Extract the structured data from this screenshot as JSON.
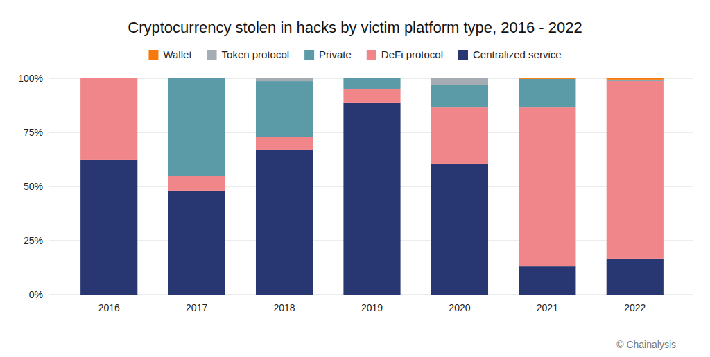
{
  "chart_data": {
    "type": "bar",
    "title": "Cryptocurrency stolen in hacks by victim platform type, 2016 - 2022",
    "source": "© Chainalysis",
    "categories": [
      "2016",
      "2017",
      "2018",
      "2019",
      "2020",
      "2021",
      "2022"
    ],
    "series": [
      {
        "name": "Centralized service",
        "color": "#283671",
        "values": [
          62.2,
          48.1,
          67.0,
          88.8,
          60.6,
          13.1,
          16.7
        ]
      },
      {
        "name": "DeFi protocol",
        "color": "#f0868a",
        "values": [
          37.8,
          6.7,
          5.8,
          6.4,
          25.9,
          73.4,
          82.1
        ]
      },
      {
        "name": "Private",
        "color": "#5b9ba8",
        "values": [
          0,
          45.2,
          25.9,
          4.8,
          10.6,
          13.2,
          0.3
        ]
      },
      {
        "name": "Token protocol",
        "color": "#a6acb4",
        "values": [
          0,
          0,
          1.3,
          0,
          2.9,
          0,
          0.3
        ]
      },
      {
        "name": "Wallet",
        "color": "#f67a0b",
        "values": [
          0,
          0,
          0,
          0,
          0,
          0.3,
          0.6
        ]
      }
    ],
    "stacked": true,
    "ylim": [
      0,
      100
    ],
    "yticks": [
      {
        "value": 0,
        "label": "0%"
      },
      {
        "value": 25,
        "label": "25%"
      },
      {
        "value": 50,
        "label": "50%"
      },
      {
        "value": 75,
        "label": "75%"
      },
      {
        "value": 100,
        "label": "100%"
      }
    ],
    "grid": true,
    "legend": "top"
  }
}
